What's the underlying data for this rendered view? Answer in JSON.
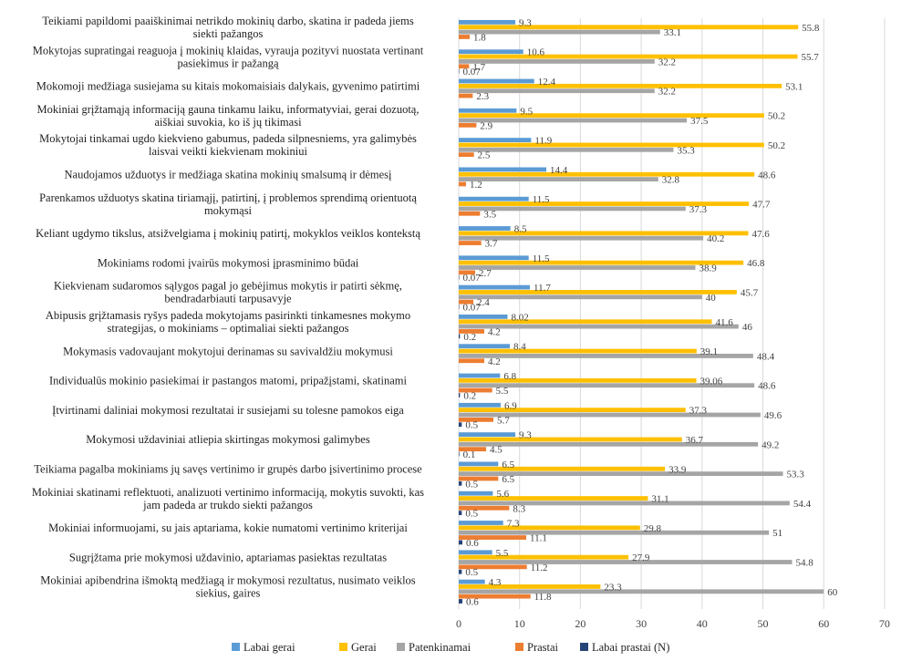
{
  "chart_data": {
    "type": "bar",
    "orientation": "horizontal",
    "xlim": [
      0,
      70
    ],
    "x_ticks": [
      0,
      10,
      20,
      30,
      40,
      50,
      60,
      70
    ],
    "grid": true,
    "legend_position": "bottom",
    "categories": [
      [
        "Teikiami papildomi paaiškinimai netrikdo mokinių darbo, skatina ir padeda jiems",
        "siekti pažangos"
      ],
      [
        "Mokytojas supratingai reaguoja į mokinių klaidas, vyrauja pozityvi nuostata vertinant",
        "pasiekimus ir pažangą"
      ],
      [
        "Mokomoji medžiaga susiejama su kitais mokomaisiais dalykais, gyvenimo patirtimi"
      ],
      [
        "Mokiniai grįžtamąją informaciją gauna tinkamu laiku, informatyviai, gerai dozuotą,",
        "aiškiai suvokia, ko iš jų tikimasi"
      ],
      [
        "Mokytojai tinkamai ugdo kiekvieno gabumus, padeda silpnesniems, yra galimybės",
        "laisvai veikti kiekvienam mokiniui"
      ],
      [
        "Naudojamos užduotys ir medžiaga skatina mokinių smalsumą ir dėmesį"
      ],
      [
        "Parenkamos užduotys skatina tiriamąjį, patirtinį, į problemos sprendimą orientuotą",
        "mokymąsi"
      ],
      [
        "Keliant ugdymo tikslus, atsižvelgiama į mokinių patirtį, mokyklos veiklos kontekstą"
      ],
      [
        "Mokiniams rodomi įvairūs mokymosi įprasminimo būdai"
      ],
      [
        "Kiekvienam sudaromos sąlygos pagal jo gebėjimus mokytis ir patirti sėkmę,",
        "bendradarbiauti tarpusavyje"
      ],
      [
        "Abipusis grįžtamasis ryšys padeda mokytojams pasirinkti tinkamesnes mokymo",
        "strategijas, o mokiniams – optimaliai siekti pažangos"
      ],
      [
        "Mokymasis vadovaujant mokytojui derinamas su savivaldžiu mokymusi"
      ],
      [
        "Individualūs mokinio pasiekimai ir pastangos matomi, pripažįstami, skatinami"
      ],
      [
        "Įtvirtinami daliniai mokymosi rezultatai ir susiejami su tolesne pamokos eiga"
      ],
      [
        "Mokymosi uždaviniai atliepia skirtingas mokymosi galimybes"
      ],
      [
        "Teikiama pagalba mokiniams jų savęs vertinimo ir grupės darbo įsivertinimo procese"
      ],
      [
        "Mokiniai skatinami reflektuoti, analizuoti vertinimo informaciją, mokytis suvokti, kas",
        "jam padeda ar trukdo siekti pažangos"
      ],
      [
        "Mokiniai informuojami, su jais aptariama, kokie numatomi vertinimo kriterijai"
      ],
      [
        "Sugrįžtama prie mokymosi uždavinio, aptariamas pasiektas rezultatas"
      ],
      [
        "Mokiniai apibendrina išmoktą medžiagą ir mokymosi rezultatus, nusimato veiklos",
        "siekius, gaires"
      ]
    ],
    "series": [
      {
        "name": "Labai gerai",
        "color": "#5b9bd5",
        "values": [
          9.3,
          10.6,
          12.4,
          9.5,
          11.9,
          14.4,
          11.5,
          8.5,
          11.5,
          11.7,
          8.02,
          8.4,
          6.8,
          6.9,
          9.3,
          6.5,
          5.6,
          7.3,
          5.5,
          4.3
        ],
        "labels": [
          "9.3",
          "10.6",
          "12.4",
          "9.5",
          "11.9",
          "14.4",
          "11.5",
          "8.5",
          "11.5",
          "11.7",
          "8.02",
          "8.4",
          "6.8",
          "6.9",
          "9.3",
          "6.5",
          "5.6",
          "7.3",
          "5.5",
          "4.3"
        ]
      },
      {
        "name": "Gerai",
        "color": "#ffc000",
        "values": [
          55.8,
          55.7,
          53.1,
          50.2,
          50.2,
          48.6,
          47.7,
          47.6,
          46.8,
          45.7,
          41.6,
          39.1,
          39.06,
          37.3,
          36.7,
          33.9,
          31.1,
          29.8,
          27.9,
          23.3
        ],
        "labels": [
          "55.8",
          "55.7",
          "53.1",
          "50.2",
          "50.2",
          "48.6",
          "47.7",
          "47.6",
          "46.8",
          "45.7",
          "41.6",
          "39.1",
          "39.06",
          "37.3",
          "36.7",
          "33.9",
          "31.1",
          "29.8",
          "27.9",
          "23.3"
        ]
      },
      {
        "name": "Patenkinamai",
        "color": "#a5a5a5",
        "values": [
          33.1,
          32.2,
          32.2,
          37.5,
          35.3,
          32.8,
          37.3,
          40.2,
          38.9,
          40,
          46,
          48.4,
          48.6,
          49.6,
          49.2,
          53.3,
          54.4,
          51,
          54.8,
          60
        ],
        "labels": [
          "33.1",
          "32.2",
          "32.2",
          "37.5",
          "35.3",
          "32.8",
          "37.3",
          "40.2",
          "38.9",
          "40",
          "46",
          "48.4",
          "48.6",
          "49.6",
          "49.2",
          "53.3",
          "54.4",
          "51",
          "54.8",
          "60"
        ]
      },
      {
        "name": "Prastai",
        "color": "#ed7d31",
        "values": [
          1.8,
          1.7,
          2.3,
          2.9,
          2.5,
          1.2,
          3.5,
          3.7,
          2.7,
          2.4,
          4.2,
          4.2,
          5.5,
          5.7,
          4.5,
          6.5,
          8.3,
          11.1,
          11.2,
          11.8
        ],
        "labels": [
          "1.8",
          "1.7",
          "2.3",
          "2.9",
          "2.5",
          "1.2",
          "3.5",
          "3.7",
          "2.7",
          "2.4",
          "4.2",
          "4.2",
          "5.5",
          "5.7",
          "4.5",
          "6.5",
          "8.3",
          "11.1",
          "11.2",
          "11.8"
        ]
      },
      {
        "name": "Labai prastai  (N)",
        "color": "#264478",
        "values": [
          0,
          0.07,
          0,
          0,
          0,
          0,
          0,
          0,
          0.07,
          0.07,
          0.2,
          0,
          0.2,
          0.5,
          0.1,
          0.5,
          0.5,
          0.6,
          0.5,
          0.6
        ],
        "labels": [
          "",
          "0.07",
          "",
          "",
          "",
          "",
          "",
          "",
          "0.07",
          "0.07",
          "0.2",
          "",
          "0.2",
          "0.5",
          "0.1",
          "0.5",
          "0.5",
          "0.6",
          "0.5",
          "0.6"
        ]
      }
    ]
  }
}
